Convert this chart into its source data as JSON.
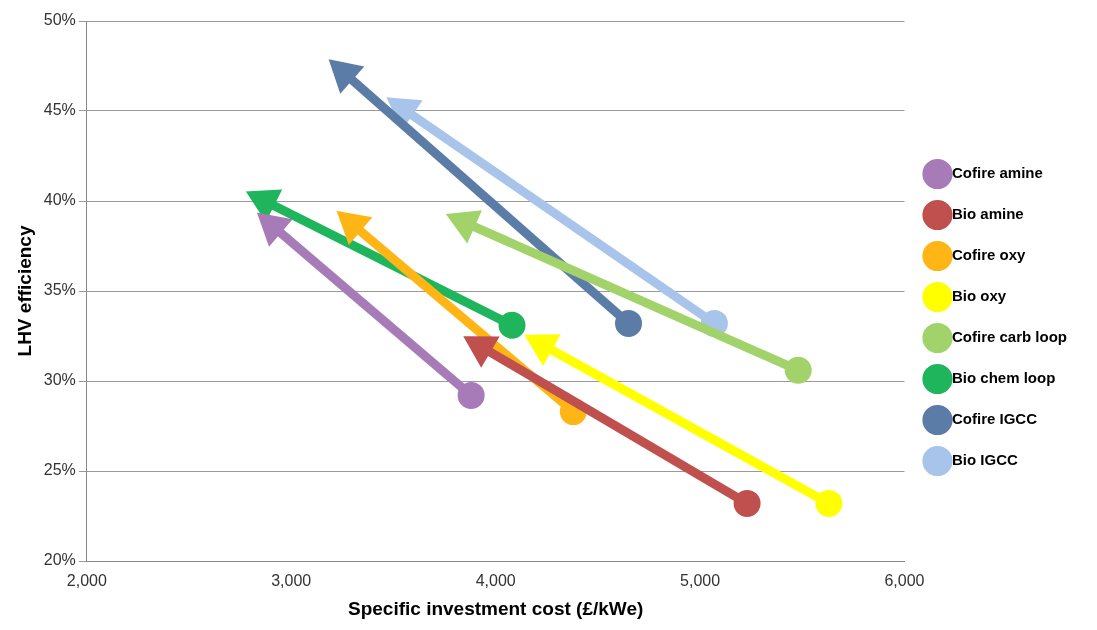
{
  "chart_data": {
    "type": "line",
    "xlabel": "Specific investment cost (£/kWe)",
    "ylabel": "LHV efficiency",
    "xlim": [
      2000,
      6000
    ],
    "xticks": [
      {
        "value": 2000,
        "label": "2,000"
      },
      {
        "value": 3000,
        "label": "3,000"
      },
      {
        "value": 4000,
        "label": "4,000"
      },
      {
        "value": 5000,
        "label": "5,000"
      },
      {
        "value": 6000,
        "label": "6,000"
      }
    ],
    "ylim": [
      20,
      50
    ],
    "yticks": [
      {
        "value": 20,
        "label": "20%"
      },
      {
        "value": 25,
        "label": "25%"
      },
      {
        "value": 30,
        "label": "30%"
      },
      {
        "value": 35,
        "label": "35%"
      },
      {
        "value": 40,
        "label": "40%"
      },
      {
        "value": 45,
        "label": "45%"
      },
      {
        "value": 50,
        "label": "50%"
      }
    ],
    "grid": "y",
    "legend": "right",
    "marker": "circle",
    "line_style": "solid",
    "series": [
      {
        "name": "Cofire amine",
        "color": "#a67bb8",
        "x": [
          3880,
          2910
        ],
        "values": [
          29.2,
          38.6
        ]
      },
      {
        "name": "Bio amine",
        "color": "#c0504d",
        "x": [
          5230,
          3930
        ],
        "values": [
          23.2,
          31.9
        ]
      },
      {
        "name": "Cofire oxy",
        "color": "#ffb515",
        "x": [
          4380,
          3300
        ],
        "values": [
          28.3,
          38.7
        ]
      },
      {
        "name": "Bio oxy",
        "color": "#ffff00",
        "x": [
          5630,
          4230
        ],
        "values": [
          23.2,
          32.0
        ]
      },
      {
        "name": "Cofire carb loop",
        "color": "#a2d36a",
        "x": [
          5480,
          3850
        ],
        "values": [
          30.6,
          38.8
        ]
      },
      {
        "name": "Bio chem loop",
        "color": "#1fb55d",
        "x": [
          4080,
          2870
        ],
        "values": [
          33.1,
          40.0
        ]
      },
      {
        "name": "Cofire IGCC",
        "color": "#5b7ca6",
        "x": [
          4650,
          3260
        ],
        "values": [
          33.2,
          47.1
        ]
      },
      {
        "name": "Bio IGCC",
        "color": "#a9c4ea",
        "x": [
          5070,
          3550
        ],
        "values": [
          33.2,
          45.1
        ]
      }
    ]
  }
}
